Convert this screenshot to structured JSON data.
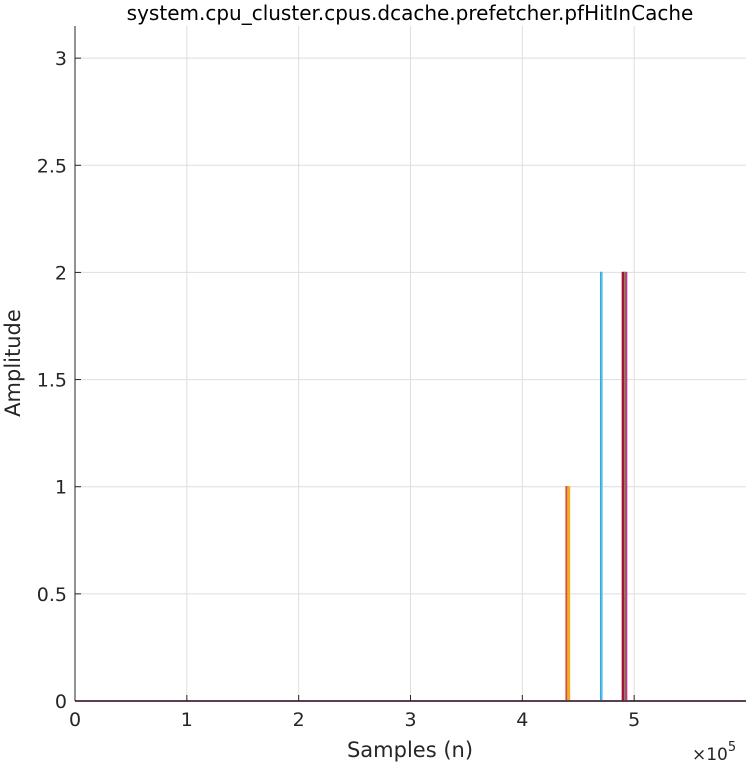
{
  "chart_data": {
    "type": "line",
    "title": "system.cpu_cluster.cpus.dcache.prefetcher.pfHitInCache",
    "xlabel": "Samples (n)",
    "ylabel": "Amplitude",
    "xlim": [
      0,
      600000
    ],
    "ylim": [
      0,
      3.15
    ],
    "x_tick_values": [
      0,
      100000,
      200000,
      300000,
      400000,
      500000
    ],
    "x_tick_labels": [
      "0",
      "1",
      "2",
      "3",
      "4",
      "5"
    ],
    "x_exponent_multiplier": "×10",
    "x_exponent_power": "5",
    "y_tick_values": [
      0,
      0.5,
      1,
      1.5,
      2,
      2.5,
      3
    ],
    "y_tick_labels": [
      "0",
      "0.5",
      "1",
      "1.5",
      "2",
      "2.5",
      "3"
    ],
    "grid": true,
    "series": [
      {
        "color": "#0072BD",
        "spikes": [
          {
            "x": 470500,
            "y": 2
          }
        ]
      },
      {
        "color": "#D95319",
        "spikes": [
          {
            "x": 439500,
            "y": 1
          },
          {
            "x": 490800,
            "y": 2
          }
        ]
      },
      {
        "color": "#EDB120",
        "spikes": [
          {
            "x": 441800,
            "y": 1
          }
        ]
      },
      {
        "color": "#7E2F8E",
        "spikes": [
          {
            "x": 491500,
            "y": 2
          }
        ]
      },
      {
        "color": "#77AC30",
        "spikes": [
          {
            "x": 492100,
            "y": 2
          }
        ]
      },
      {
        "color": "#4DBEEE",
        "spikes": [
          {
            "x": 470800,
            "y": 2
          }
        ]
      },
      {
        "color": "#A2142F",
        "spikes": [
          {
            "x": 489800,
            "y": 2
          }
        ]
      },
      {
        "color": "#C0398F",
        "spikes": [
          {
            "x": 492900,
            "y": 2
          }
        ]
      },
      {
        "color": "#6B2A7E",
        "spikes": []
      }
    ]
  }
}
